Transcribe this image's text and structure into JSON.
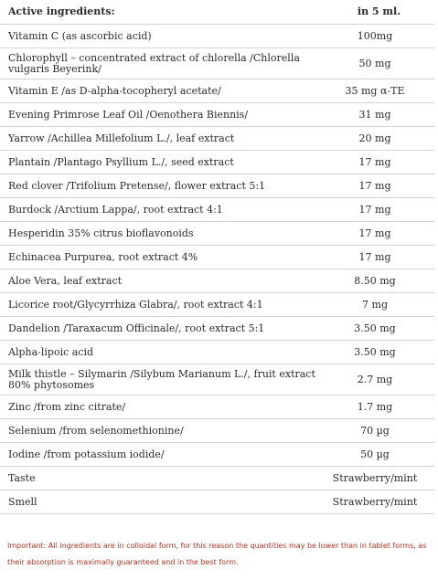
{
  "header": {
    "ingredient_label": "Active ingredients:",
    "amount_label": "in 5 ml."
  },
  "rows": [
    {
      "name": "Vitamin C (as ascorbic acid)",
      "amount": "100mg",
      "height": 1
    },
    {
      "name": "Chlorophyll – concentrated extract of chlorella /Chlorella vulgaris Beyerink/",
      "amount": "50 mg",
      "height": 2
    },
    {
      "name": "Vitamin E /as D-alpha-tocopheryl acetate/",
      "amount": "35 mg α-TE",
      "height": 1
    },
    {
      "name": "Evening Primrose Leaf Oil /Oenothera Biennis/",
      "amount": "31 mg",
      "height": 1
    },
    {
      "name": "Yarrow /Achillea Millefolium L./, leaf extract",
      "amount": "20 mg",
      "height": 1
    },
    {
      "name": "Plantain /Plantago Psyllium L./, seed extract",
      "amount": "17 mg",
      "height": 1
    },
    {
      "name": "Red clover /Trifolium Pretense/, flower extract 5:1",
      "amount": "17 mg",
      "height": 1
    },
    {
      "name": "Burdock /Arctium Lappa/, root extract 4:1",
      "amount": "17 mg",
      "height": 1
    },
    {
      "name": "Hesperidin 35% citrus bioflavonoids",
      "amount": "17 mg",
      "height": 1
    },
    {
      "name": "Echinacea Purpurea, root extract 4%",
      "amount": "17 mg",
      "height": 1
    },
    {
      "name": "Aloe Vera, leaf extract",
      "amount": "8.50 mg",
      "height": 1
    },
    {
      "name": "Licorice root/Glycyrrhiza Glabra/, root extract 4:1",
      "amount": "7 mg",
      "height": 1
    },
    {
      "name": "Dandelion /Taraxacum Officinale/, root extract 5:1",
      "amount": "3.50 mg",
      "height": 1
    },
    {
      "name": "Alpha-lipoic acid",
      "amount": "3.50 mg",
      "height": 1
    },
    {
      "name": "Milk thistle – Silymarin /Silybum Marianum L./, fruit extract 80% phytosomes",
      "amount": "2.7 mg",
      "height": 2
    },
    {
      "name": "Zinc /from zinc citrate/",
      "amount": "1.7 mg",
      "height": 1
    },
    {
      "name": "Selenium /from selenomethionine/",
      "amount": "70 µg",
      "height": 1
    },
    {
      "name": "Iodine /from potassium iodide/",
      "amount": "50 µg",
      "height": 1
    },
    {
      "name": "Taste",
      "amount": "Strawberry/mint",
      "height": 1
    },
    {
      "name": "Smell",
      "amount": "Strawberry/mint",
      "height": 1
    }
  ],
  "note": "Important: All ingredients are in colloidal form, for this reason the quantities may be lower than in tablet forms, as their absorption is maximally guaranteed and in the best form.",
  "colors": {
    "note": "#b8321e",
    "text": "#2b2b2b",
    "divider": "#d4d4d4"
  }
}
